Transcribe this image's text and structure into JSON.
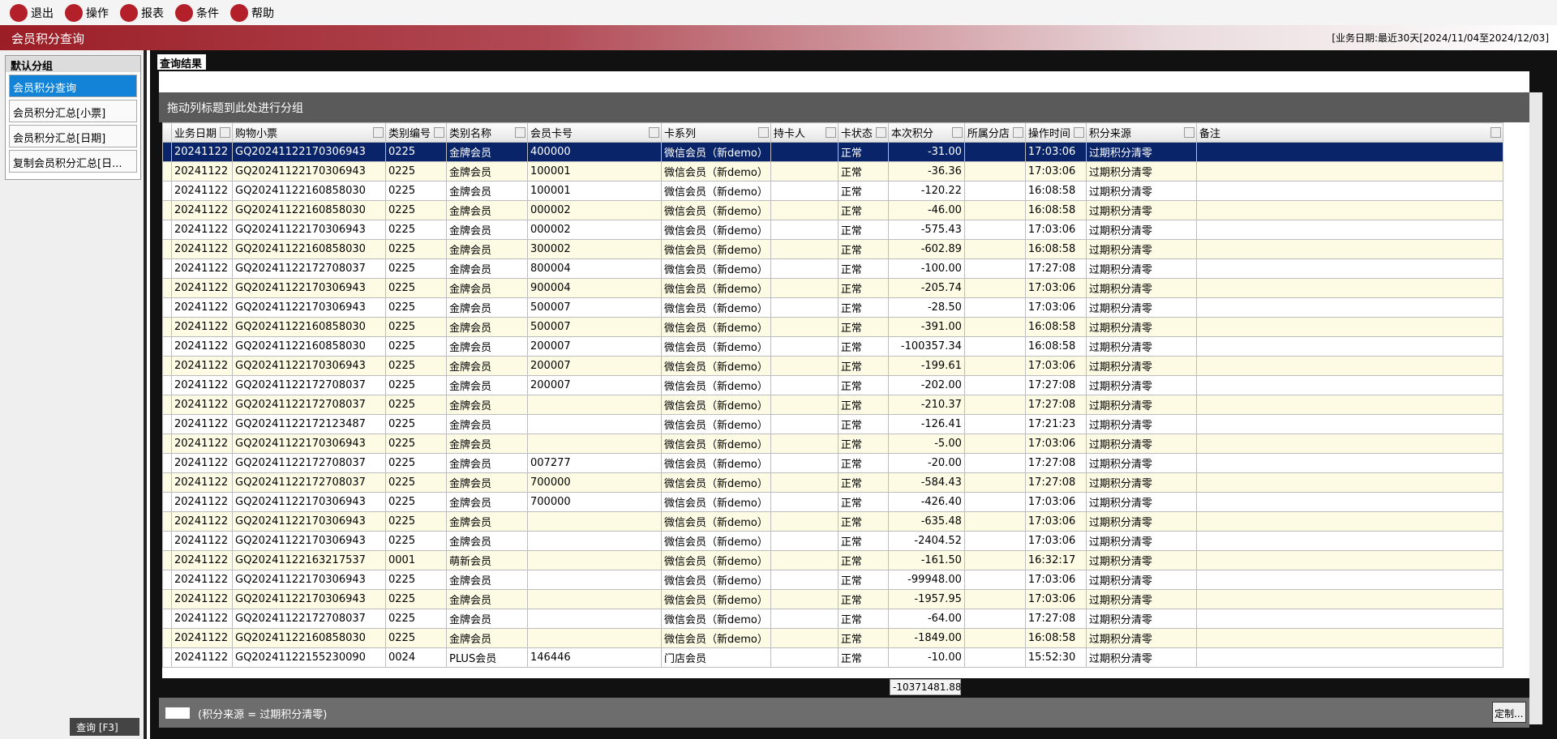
{
  "toolbar": [
    "退出",
    "操作",
    "报表",
    "条件",
    "帮助"
  ],
  "title": "会员积分查询",
  "date_info": "[业务日期:最近30天[2024/11/04至2024/12/03]",
  "sidebar": {
    "group": "默认分组",
    "items": [
      "会员积分查询",
      "会员积分汇总[小票]",
      "会员积分汇总[日期]",
      "复制会员积分汇总[日..."
    ],
    "query_button": "查询 [F3]"
  },
  "tab": "查询结果",
  "group_hint": "拖动列标题到此处进行分组",
  "table": {
    "columns": [
      "业务日期",
      "购物小票",
      "类别编号",
      "类别名称",
      "会员卡号",
      "卡系列",
      "持卡人",
      "卡状态",
      "本次积分",
      "所属分店",
      "操作时间",
      "积分来源",
      "备注"
    ],
    "rows": [
      {
        "date": "20241122",
        "ticket": "GQ20241122170306943",
        "code": "0225",
        "type": "金牌会员",
        "card": "400000",
        "series": "微信会员（新demo）",
        "status": "正常",
        "points": "-31.00",
        "time": "17:03:06",
        "source": "过期积分清零"
      },
      {
        "date": "20241122",
        "ticket": "GQ20241122170306943",
        "code": "0225",
        "type": "金牌会员",
        "card": "100001",
        "series": "微信会员（新demo）",
        "status": "正常",
        "points": "-36.36",
        "time": "17:03:06",
        "source": "过期积分清零"
      },
      {
        "date": "20241122",
        "ticket": "GQ20241122160858030",
        "code": "0225",
        "type": "金牌会员",
        "card": "100001",
        "series": "微信会员（新demo）",
        "status": "正常",
        "points": "-120.22",
        "time": "16:08:58",
        "source": "过期积分清零"
      },
      {
        "date": "20241122",
        "ticket": "GQ20241122160858030",
        "code": "0225",
        "type": "金牌会员",
        "card": "000002",
        "series": "微信会员（新demo）",
        "status": "正常",
        "points": "-46.00",
        "time": "16:08:58",
        "source": "过期积分清零"
      },
      {
        "date": "20241122",
        "ticket": "GQ20241122170306943",
        "code": "0225",
        "type": "金牌会员",
        "card": "000002",
        "series": "微信会员（新demo）",
        "status": "正常",
        "points": "-575.43",
        "time": "17:03:06",
        "source": "过期积分清零"
      },
      {
        "date": "20241122",
        "ticket": "GQ20241122160858030",
        "code": "0225",
        "type": "金牌会员",
        "card": "300002",
        "series": "微信会员（新demo）",
        "status": "正常",
        "points": "-602.89",
        "time": "16:08:58",
        "source": "过期积分清零"
      },
      {
        "date": "20241122",
        "ticket": "GQ20241122172708037",
        "code": "0225",
        "type": "金牌会员",
        "card": "800004",
        "series": "微信会员（新demo）",
        "status": "正常",
        "points": "-100.00",
        "time": "17:27:08",
        "source": "过期积分清零"
      },
      {
        "date": "20241122",
        "ticket": "GQ20241122170306943",
        "code": "0225",
        "type": "金牌会员",
        "card": "900004",
        "series": "微信会员（新demo）",
        "status": "正常",
        "points": "-205.74",
        "time": "17:03:06",
        "source": "过期积分清零"
      },
      {
        "date": "20241122",
        "ticket": "GQ20241122170306943",
        "code": "0225",
        "type": "金牌会员",
        "card": "500007",
        "series": "微信会员（新demo）",
        "status": "正常",
        "points": "-28.50",
        "time": "17:03:06",
        "source": "过期积分清零"
      },
      {
        "date": "20241122",
        "ticket": "GQ20241122160858030",
        "code": "0225",
        "type": "金牌会员",
        "card": "500007",
        "series": "微信会员（新demo）",
        "status": "正常",
        "points": "-391.00",
        "time": "16:08:58",
        "source": "过期积分清零"
      },
      {
        "date": "20241122",
        "ticket": "GQ20241122160858030",
        "code": "0225",
        "type": "金牌会员",
        "card": "200007",
        "series": "微信会员（新demo）",
        "status": "正常",
        "points": "-100357.34",
        "time": "16:08:58",
        "source": "过期积分清零"
      },
      {
        "date": "20241122",
        "ticket": "GQ20241122170306943",
        "code": "0225",
        "type": "金牌会员",
        "card": "200007",
        "series": "微信会员（新demo）",
        "status": "正常",
        "points": "-199.61",
        "time": "17:03:06",
        "source": "过期积分清零"
      },
      {
        "date": "20241122",
        "ticket": "GQ20241122172708037",
        "code": "0225",
        "type": "金牌会员",
        "card": "200007",
        "series": "微信会员（新demo）",
        "status": "正常",
        "points": "-202.00",
        "time": "17:27:08",
        "source": "过期积分清零"
      },
      {
        "date": "20241122",
        "ticket": "GQ20241122172708037",
        "code": "0225",
        "type": "金牌会员",
        "series": "微信会员（新demo）",
        "status": "正常",
        "points": "-210.37",
        "time": "17:27:08",
        "source": "过期积分清零"
      },
      {
        "date": "20241122",
        "ticket": "GQ20241122172123487",
        "code": "0225",
        "type": "金牌会员",
        "series": "微信会员（新demo）",
        "status": "正常",
        "points": "-126.41",
        "time": "17:21:23",
        "source": "过期积分清零"
      },
      {
        "date": "20241122",
        "ticket": "GQ20241122170306943",
        "code": "0225",
        "type": "金牌会员",
        "series": "微信会员（新demo）",
        "status": "正常",
        "points": "-5.00",
        "time": "17:03:06",
        "source": "过期积分清零"
      },
      {
        "date": "20241122",
        "ticket": "GQ20241122172708037",
        "code": "0225",
        "type": "金牌会员",
        "card": "007277",
        "series": "微信会员（新demo）",
        "status": "正常",
        "points": "-20.00",
        "time": "17:27:08",
        "source": "过期积分清零"
      },
      {
        "date": "20241122",
        "ticket": "GQ20241122172708037",
        "code": "0225",
        "type": "金牌会员",
        "card": "700000",
        "series": "微信会员（新demo）",
        "status": "正常",
        "points": "-584.43",
        "time": "17:27:08",
        "source": "过期积分清零"
      },
      {
        "date": "20241122",
        "ticket": "GQ20241122170306943",
        "code": "0225",
        "type": "金牌会员",
        "card": "700000",
        "series": "微信会员（新demo）",
        "status": "正常",
        "points": "-426.40",
        "time": "17:03:06",
        "source": "过期积分清零"
      },
      {
        "date": "20241122",
        "ticket": "GQ20241122170306943",
        "code": "0225",
        "type": "金牌会员",
        "series": "微信会员（新demo）",
        "status": "正常",
        "points": "-635.48",
        "time": "17:03:06",
        "source": "过期积分清零"
      },
      {
        "date": "20241122",
        "ticket": "GQ20241122170306943",
        "code": "0225",
        "type": "金牌会员",
        "series": "微信会员（新demo）",
        "status": "正常",
        "points": "-2404.52",
        "time": "17:03:06",
        "source": "过期积分清零"
      },
      {
        "date": "20241122",
        "ticket": "GQ20241122163217537",
        "code": "0001",
        "type": "萌新会员",
        "series": "微信会员（新demo）",
        "status": "正常",
        "points": "-161.50",
        "time": "16:32:17",
        "source": "过期积分清零"
      },
      {
        "date": "20241122",
        "ticket": "GQ20241122170306943",
        "code": "0225",
        "type": "金牌会员",
        "series": "微信会员（新demo）",
        "status": "正常",
        "points": "-99948.00",
        "time": "17:03:06",
        "source": "过期积分清零"
      },
      {
        "date": "20241122",
        "ticket": "GQ20241122170306943",
        "code": "0225",
        "type": "金牌会员",
        "series": "微信会员（新demo）",
        "status": "正常",
        "points": "-1957.95",
        "time": "17:03:06",
        "source": "过期积分清零"
      },
      {
        "date": "20241122",
        "ticket": "GQ20241122172708037",
        "code": "0225",
        "type": "金牌会员",
        "series": "微信会员（新demo）",
        "status": "正常",
        "points": "-64.00",
        "time": "17:27:08",
        "source": "过期积分清零"
      },
      {
        "date": "20241122",
        "ticket": "GQ20241122160858030",
        "code": "0225",
        "type": "金牌会员",
        "series": "微信会员（新demo）",
        "status": "正常",
        "points": "-1849.00",
        "time": "16:08:58",
        "source": "过期积分清零"
      },
      {
        "date": "20241122",
        "ticket": "GQ20241122155230090",
        "code": "0024",
        "type": "PLUS会员",
        "card": "146446",
        "series": "门店会员",
        "status": "正常",
        "points": "-10.00",
        "time": "15:52:30",
        "source": "过期积分清零"
      }
    ],
    "total": "-10371481.88"
  },
  "filter": "(积分来源 = 过期积分清零)",
  "customize_button": "定制..."
}
